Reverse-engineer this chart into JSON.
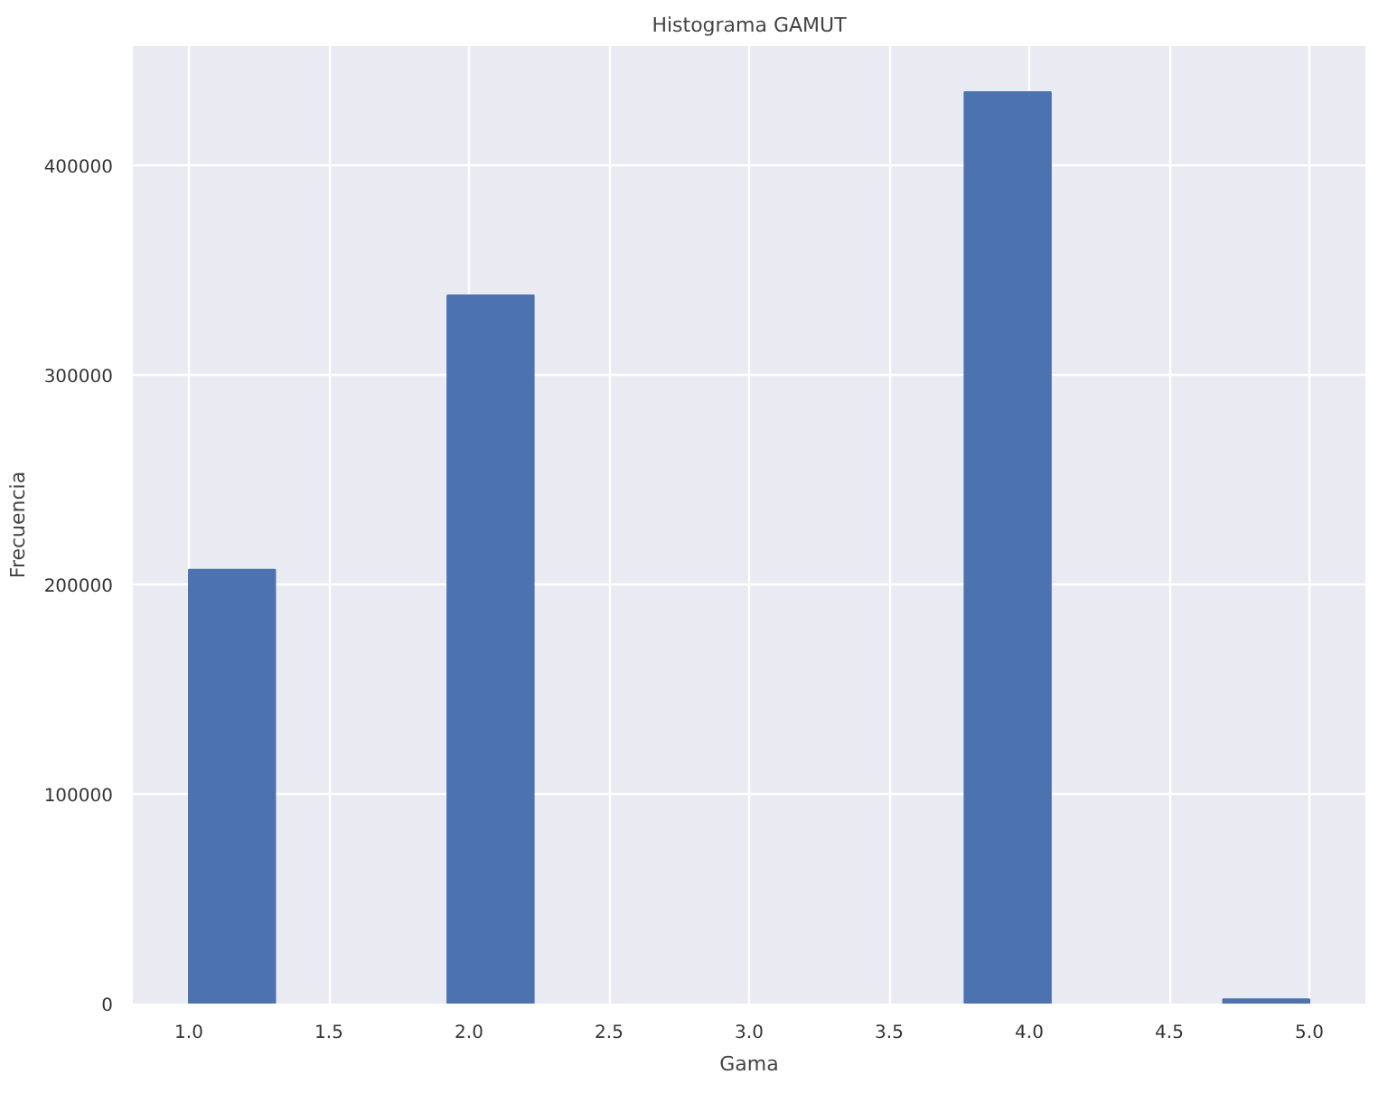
{
  "chart_data": {
    "type": "histogram",
    "title": "Histograma GAMUT",
    "xlabel": "Gama",
    "ylabel": "Frecuencia",
    "bins": [
      1,
      1.308,
      1.615,
      1.923,
      2.231,
      2.538,
      2.846,
      3.154,
      3.462,
      3.769,
      4.077,
      4.385,
      4.692,
      5
    ],
    "values": [
      207000,
      0,
      0,
      338000,
      0,
      0,
      0,
      0,
      0,
      435000,
      0,
      0,
      2000
    ],
    "color": "#4c72b0",
    "xlim": [
      0.8,
      5.2
    ],
    "xticks": [
      {
        "value": 1,
        "label": "1.0"
      },
      1.5,
      {
        "value": 2,
        "label": "2.0"
      },
      2.5,
      {
        "value": 3,
        "label": "3.0"
      },
      3.5,
      {
        "value": 4,
        "label": "4.0"
      },
      4.5,
      {
        "value": 5,
        "label": "5.0"
      }
    ],
    "ylim": [
      0,
      457000
    ],
    "yticks": [
      0,
      100000,
      200000,
      300000,
      400000
    ],
    "grid": true
  }
}
